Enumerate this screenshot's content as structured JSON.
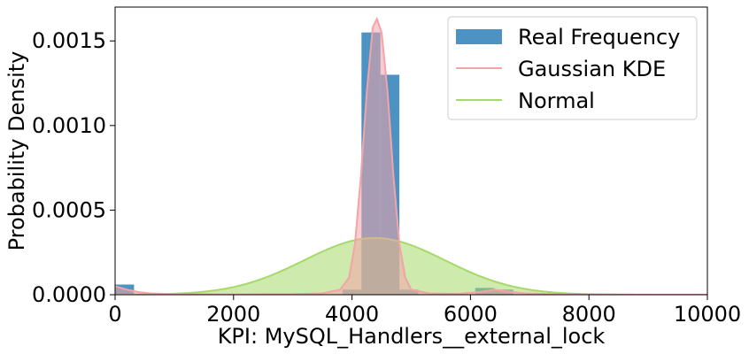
{
  "chart_data": {
    "type": "histogram",
    "title": "",
    "xlabel": "KPI: MySQL_Handlers__external_lock",
    "ylabel": "Probability Density",
    "xlim": [
      0,
      10000
    ],
    "ylim": [
      0,
      0.0017
    ],
    "x_ticks": [
      0,
      2000,
      4000,
      6000,
      8000,
      10000
    ],
    "x_tick_labels": [
      "0",
      "2000",
      "4000",
      "6000",
      "8000",
      "10000"
    ],
    "y_ticks": [
      0.0,
      0.0005,
      0.001,
      0.0015
    ],
    "y_tick_labels": [
      "0.0000",
      "0.0005",
      "0.0010",
      "0.0015"
    ],
    "grid": false,
    "legend_position": "top-right",
    "series": [
      {
        "name": "Real Frequency",
        "kind": "histogram",
        "color": "#1f77b4",
        "bins": [
          {
            "x0": 0,
            "x1": 320,
            "density": 6e-05
          },
          {
            "x0": 320,
            "x1": 640,
            "density": 0.0
          },
          {
            "x0": 640,
            "x1": 960,
            "density": 0.0
          },
          {
            "x0": 960,
            "x1": 1280,
            "density": 0.0
          },
          {
            "x0": 1280,
            "x1": 1600,
            "density": 0.0
          },
          {
            "x0": 1600,
            "x1": 1920,
            "density": 0.0
          },
          {
            "x0": 1920,
            "x1": 2240,
            "density": 0.0
          },
          {
            "x0": 2240,
            "x1": 2560,
            "density": 0.0
          },
          {
            "x0": 2560,
            "x1": 2880,
            "density": 0.0
          },
          {
            "x0": 2880,
            "x1": 3200,
            "density": 0.0
          },
          {
            "x0": 3200,
            "x1": 3520,
            "density": 0.0
          },
          {
            "x0": 3520,
            "x1": 3840,
            "density": 0.0
          },
          {
            "x0": 3840,
            "x1": 4160,
            "density": 3e-05
          },
          {
            "x0": 4160,
            "x1": 4480,
            "density": 0.00155
          },
          {
            "x0": 4480,
            "x1": 4800,
            "density": 0.0013
          },
          {
            "x0": 4800,
            "x1": 5120,
            "density": 3e-05
          },
          {
            "x0": 5120,
            "x1": 5440,
            "density": 0.0
          },
          {
            "x0": 5440,
            "x1": 5760,
            "density": 0.0
          },
          {
            "x0": 5760,
            "x1": 6080,
            "density": 0.0
          },
          {
            "x0": 6080,
            "x1": 6400,
            "density": 4e-05
          },
          {
            "x0": 6400,
            "x1": 6720,
            "density": 3e-05
          }
        ]
      },
      {
        "name": "Gaussian KDE",
        "kind": "line",
        "color": "#f4a3a8",
        "fill": "#f4a3a8",
        "points": [
          [
            0,
            5e-05
          ],
          [
            200,
            3e-05
          ],
          [
            400,
            1.5e-05
          ],
          [
            600,
            8e-06
          ],
          [
            1000,
            3e-06
          ],
          [
            2000,
            1e-06
          ],
          [
            3000,
            3e-06
          ],
          [
            3500,
            8e-06
          ],
          [
            3800,
            3e-05
          ],
          [
            3950,
            0.0001
          ],
          [
            4050,
            0.0003
          ],
          [
            4150,
            0.0007
          ],
          [
            4250,
            0.0012
          ],
          [
            4350,
            0.00158
          ],
          [
            4420,
            0.00163
          ],
          [
            4500,
            0.00155
          ],
          [
            4600,
            0.0012
          ],
          [
            4700,
            0.0007
          ],
          [
            4800,
            0.0003
          ],
          [
            4900,
            0.0001
          ],
          [
            5000,
            3e-05
          ],
          [
            5300,
            8e-06
          ],
          [
            5800,
            5e-06
          ],
          [
            6200,
            1.8e-05
          ],
          [
            6400,
            3e-05
          ],
          [
            6600,
            2e-05
          ],
          [
            6900,
            8e-06
          ],
          [
            7500,
            2e-06
          ],
          [
            8500,
            5e-07
          ],
          [
            10000,
            0.0
          ]
        ]
      },
      {
        "name": "Normal",
        "kind": "line",
        "color": "#a6d96a",
        "fill": "#a6d96a",
        "mean": 4380,
        "std": 1190
      }
    ]
  },
  "legend": {
    "items": [
      {
        "label": "Real Frequency",
        "swatch": "bar",
        "color": "#1f77b4"
      },
      {
        "label": "Gaussian KDE",
        "swatch": "line",
        "color": "#f4a3a8"
      },
      {
        "label": "Normal",
        "swatch": "line",
        "color": "#a6d96a"
      }
    ]
  }
}
